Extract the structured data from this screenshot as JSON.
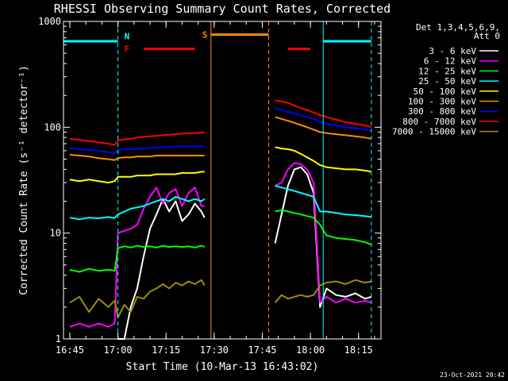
{
  "chart_data": {
    "type": "line",
    "title": "RHESSI Observing Summary Count Rates, Corrected",
    "xlabel": "Start Time (10-Mar-13 16:43:02)",
    "ylabel": "Corrected Count Rate (s⁻¹ detector⁻¹)",
    "y_scale": "log",
    "ylim": [
      1,
      1000
    ],
    "xlim": [
      "16:43:02",
      "18:22:00"
    ],
    "x_ticks": [
      "16:45",
      "17:00",
      "17:15",
      "17:30",
      "17:45",
      "18:00",
      "18:15"
    ],
    "y_ticks": [
      "1",
      "10",
      "100",
      "1000"
    ],
    "grid": false,
    "legend_position": "right",
    "legend_header": [
      "Det 1,3,4,5,6,9,",
      "Att 0"
    ],
    "series": [
      {
        "name": "3 - 6 keV",
        "color": "#ffffff",
        "x": [
          "17:00",
          "17:02",
          "17:04",
          "17:06",
          "17:08",
          "17:10",
          "17:12",
          "17:14",
          "17:16",
          "17:18",
          "17:20",
          "17:22",
          "17:24",
          "17:26",
          "17:27",
          "17:49",
          "17:51",
          "17:53",
          "17:55",
          "17:57",
          "17:59",
          "18:01",
          "18:03",
          "18:05",
          "18:08",
          "18:11",
          "18:14",
          "18:17",
          "18:19"
        ],
        "y": [
          1,
          1,
          2,
          3,
          6,
          11,
          15,
          21,
          16,
          20,
          13,
          15,
          19,
          16,
          14,
          8,
          15,
          28,
          40,
          42,
          36,
          24,
          2,
          3,
          2.6,
          2.5,
          2.7,
          2.4,
          2.5
        ]
      },
      {
        "name": "6 - 12 keV",
        "color": "#ff00ff",
        "x": [
          "16:45",
          "16:48",
          "16:51",
          "16:54",
          "16:57",
          "16:59",
          "17:00",
          "17:02",
          "17:04",
          "17:06",
          "17:08",
          "17:10",
          "17:12",
          "17:14",
          "17:16",
          "17:18",
          "17:20",
          "17:22",
          "17:24",
          "17:26",
          "17:27",
          "17:49",
          "17:51",
          "17:53",
          "17:55",
          "17:57",
          "17:59",
          "18:01",
          "18:03",
          "18:05",
          "18:08",
          "18:11",
          "18:14",
          "18:17",
          "18:19"
        ],
        "y": [
          1.3,
          1.4,
          1.3,
          1.4,
          1.3,
          1.4,
          10,
          10.5,
          11,
          12,
          17,
          22,
          27,
          19,
          24,
          26,
          18,
          24,
          27,
          18,
          18,
          28,
          30,
          40,
          46,
          45,
          40,
          30,
          2.2,
          2.5,
          2.2,
          2.4,
          2.2,
          2.3,
          2.2
        ]
      },
      {
        "name": "12 - 25 keV",
        "color": "#00ff00",
        "x": [
          "16:45",
          "16:48",
          "16:51",
          "16:54",
          "16:57",
          "16:59",
          "17:00",
          "17:02",
          "17:04",
          "17:06",
          "17:08",
          "17:10",
          "17:12",
          "17:14",
          "17:16",
          "17:18",
          "17:20",
          "17:22",
          "17:24",
          "17:26",
          "17:27",
          "17:49",
          "17:51",
          "17:53",
          "17:55",
          "17:57",
          "17:59",
          "18:01",
          "18:03",
          "18:05",
          "18:08",
          "18:11",
          "18:14",
          "18:17",
          "18:19"
        ],
        "y": [
          4.5,
          4.3,
          4.6,
          4.4,
          4.5,
          4.4,
          7.2,
          7.5,
          7.3,
          7.6,
          7.4,
          7.5,
          7.3,
          7.6,
          7.4,
          7.5,
          7.4,
          7.5,
          7.3,
          7.6,
          7.4,
          16,
          16.5,
          16,
          15.5,
          15,
          14.5,
          14,
          12,
          9.5,
          9,
          8.8,
          8.6,
          8.2,
          7.8
        ]
      },
      {
        "name": "25 - 50 keV",
        "color": "#00ffff",
        "x": [
          "16:45",
          "16:48",
          "16:51",
          "16:54",
          "16:57",
          "16:59",
          "17:00",
          "17:02",
          "17:04",
          "17:06",
          "17:08",
          "17:10",
          "17:12",
          "17:14",
          "17:16",
          "17:18",
          "17:20",
          "17:22",
          "17:24",
          "17:26",
          "17:27",
          "17:49",
          "17:51",
          "17:53",
          "17:55",
          "17:57",
          "17:59",
          "18:01",
          "18:03",
          "18:05",
          "18:08",
          "18:11",
          "18:14",
          "18:17",
          "18:19"
        ],
        "y": [
          14,
          13.5,
          14,
          13.8,
          14.2,
          13.9,
          15,
          16,
          17,
          17.5,
          18,
          19,
          20,
          21,
          20,
          22,
          21,
          20,
          21,
          20,
          21,
          28,
          27,
          26,
          25,
          24,
          23,
          22,
          16,
          16,
          15.5,
          15,
          14.8,
          14.5,
          14.2
        ]
      },
      {
        "name": "50 - 100 keV",
        "color": "#ffff00",
        "x": [
          "16:45",
          "16:48",
          "16:51",
          "16:54",
          "16:57",
          "16:59",
          "17:00",
          "17:02",
          "17:04",
          "17:06",
          "17:08",
          "17:10",
          "17:12",
          "17:14",
          "17:16",
          "17:18",
          "17:20",
          "17:22",
          "17:24",
          "17:26",
          "17:27",
          "17:49",
          "17:51",
          "17:53",
          "17:55",
          "17:57",
          "17:59",
          "18:01",
          "18:03",
          "18:05",
          "18:08",
          "18:11",
          "18:14",
          "18:17",
          "18:19"
        ],
        "y": [
          32,
          31,
          32,
          31,
          30,
          31,
          34,
          34,
          34,
          35,
          35,
          35,
          36,
          36,
          36,
          36,
          37,
          37,
          37,
          38,
          38,
          65,
          63,
          62,
          60,
          56,
          52,
          48,
          44,
          42,
          41,
          40,
          40,
          39,
          38
        ]
      },
      {
        "name": "100 - 300 keV",
        "color": "#ff8c00",
        "x": [
          "16:45",
          "16:48",
          "16:51",
          "16:54",
          "16:57",
          "16:59",
          "17:00",
          "17:02",
          "17:04",
          "17:06",
          "17:08",
          "17:10",
          "17:12",
          "17:14",
          "17:16",
          "17:18",
          "17:20",
          "17:22",
          "17:24",
          "17:26",
          "17:27",
          "17:49",
          "17:51",
          "17:53",
          "17:55",
          "17:57",
          "17:59",
          "18:01",
          "18:03",
          "18:05",
          "18:08",
          "18:11",
          "18:14",
          "18:17",
          "18:19"
        ],
        "y": [
          55,
          54,
          53,
          51,
          50,
          49,
          51,
          52,
          52,
          53,
          53,
          53,
          54,
          54,
          54,
          54,
          54,
          54,
          54,
          54,
          54,
          125,
          120,
          115,
          110,
          105,
          100,
          95,
          90,
          88,
          86,
          84,
          82,
          80,
          78
        ]
      },
      {
        "name": "300 - 800 keV",
        "color": "#0000ff",
        "x": [
          "16:45",
          "16:48",
          "16:51",
          "16:54",
          "16:57",
          "16:59",
          "17:00",
          "17:02",
          "17:04",
          "17:06",
          "17:08",
          "17:10",
          "17:12",
          "17:14",
          "17:16",
          "17:18",
          "17:20",
          "17:22",
          "17:24",
          "17:26",
          "17:27",
          "17:49",
          "17:51",
          "17:53",
          "17:55",
          "17:57",
          "17:59",
          "18:01",
          "18:03",
          "18:05",
          "18:08",
          "18:11",
          "18:14",
          "18:17",
          "18:19"
        ],
        "y": [
          64,
          62,
          61,
          60,
          58,
          57,
          61,
          62,
          62,
          63,
          63,
          64,
          64,
          65,
          65,
          66,
          66,
          66,
          66,
          66,
          66,
          150,
          145,
          140,
          135,
          130,
          125,
          120,
          112,
          108,
          104,
          100,
          98,
          95,
          93
        ]
      },
      {
        "name": "800 - 7000 keV",
        "color": "#ff0000",
        "x": [
          "16:45",
          "16:48",
          "16:51",
          "16:54",
          "16:57",
          "16:59",
          "17:00",
          "17:02",
          "17:04",
          "17:06",
          "17:08",
          "17:10",
          "17:12",
          "17:14",
          "17:16",
          "17:18",
          "17:20",
          "17:22",
          "17:24",
          "17:26",
          "17:27",
          "17:49",
          "17:51",
          "17:53",
          "17:55",
          "17:57",
          "17:59",
          "18:01",
          "18:03",
          "18:05",
          "18:08",
          "18:11",
          "18:14",
          "18:17",
          "18:19"
        ],
        "y": [
          78,
          76,
          74,
          72,
          70,
          68,
          75,
          77,
          78,
          80,
          81,
          82,
          83,
          84,
          85,
          86,
          87,
          88,
          88,
          89,
          90,
          180,
          175,
          170,
          160,
          152,
          145,
          138,
          130,
          125,
          118,
          112,
          108,
          104,
          100
        ]
      },
      {
        "name": "7000 - 15000 keV",
        "color": "#9a8f00",
        "x": [
          "16:45",
          "16:48",
          "16:51",
          "16:54",
          "16:57",
          "16:59",
          "17:00",
          "17:02",
          "17:04",
          "17:06",
          "17:08",
          "17:10",
          "17:12",
          "17:14",
          "17:16",
          "17:18",
          "17:20",
          "17:22",
          "17:24",
          "17:26",
          "17:27",
          "17:49",
          "17:51",
          "17:53",
          "17:55",
          "17:57",
          "17:59",
          "18:01",
          "18:03",
          "18:05",
          "18:08",
          "18:11",
          "18:14",
          "18:17",
          "18:19"
        ],
        "y": [
          2.2,
          2.5,
          1.8,
          2.4,
          2,
          2.3,
          1.6,
          2.1,
          1.8,
          2.5,
          2.4,
          2.8,
          3,
          3.3,
          3,
          3.4,
          3.2,
          3.5,
          3.3,
          3.6,
          3.2,
          2.2,
          2.6,
          2.4,
          2.5,
          2.6,
          2.5,
          2.6,
          3.2,
          3.4,
          3.5,
          3.3,
          3.6,
          3.4,
          3.5
        ]
      }
    ],
    "annotations": [
      {
        "label": "N",
        "color": "#00ffff",
        "x": "17:00"
      },
      {
        "label": "F",
        "color": "#ff0000",
        "x": "17:00"
      },
      {
        "label": "S",
        "color": "#ff8c00",
        "x": "17:29"
      }
    ],
    "state_bars": [
      {
        "color": "#00ffff",
        "level": 650,
        "from": "16:43:02",
        "to": "17:00"
      },
      {
        "color": "#00ffff",
        "level": 650,
        "from": "18:04",
        "to": "18:19"
      },
      {
        "color": "#ff0000",
        "level": 550,
        "from": "17:08",
        "to": "17:24"
      },
      {
        "color": "#ff0000",
        "level": 550,
        "from": "17:53",
        "to": "18:00"
      },
      {
        "color": "#ff8c00",
        "level": 750,
        "from": "17:29",
        "to": "17:47"
      }
    ],
    "vertical_lines": [
      {
        "color": "#00ffff",
        "style": "dashed",
        "x": "17:00"
      },
      {
        "color": "#ff8c00",
        "style": "solid",
        "x": "17:29"
      },
      {
        "color": "#ff8c00",
        "style": "dashed",
        "x": "17:47"
      },
      {
        "color": "#00ffff",
        "style": "solid",
        "x": "18:04"
      },
      {
        "color": "#00ffff",
        "style": "dashed",
        "x": "18:19"
      }
    ]
  },
  "footer": {
    "date": "23-Oct-2021 20:42"
  }
}
